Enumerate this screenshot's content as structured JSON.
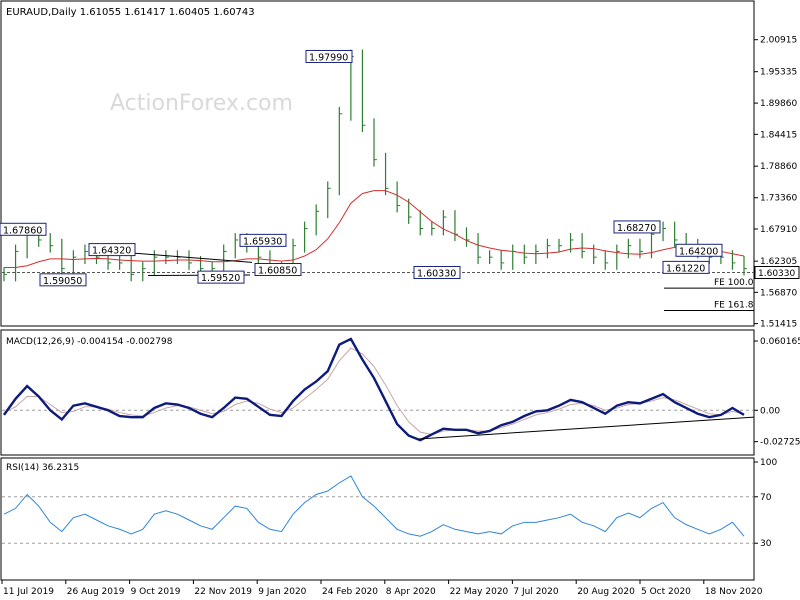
{
  "header": {
    "title": "EURAUD,Daily  1.61055 1.61417 1.60405 1.60743"
  },
  "watermark": "ActionForex.com",
  "colors": {
    "price": "#2e7d32",
    "sma": "#d32f2f",
    "macd_line": "#0d1b7a",
    "macd_signal": "#c8a6a6",
    "rsi": "#2f86d6",
    "label_border": "#1a237e",
    "trendline": "#000000",
    "grid": "#9e9e9e"
  },
  "chart_data": [
    {
      "type": "line",
      "name": "price-panel",
      "ylim": [
        1.51,
        2.04
      ],
      "yticks": [
        "2.00915",
        "1.95335",
        "1.89860",
        "1.84415",
        "1.78860",
        "1.73360",
        "1.67910",
        "1.62305",
        "1.56870",
        "1.51415"
      ],
      "current_price": "1.60330",
      "xticks": [
        "11 Jul 2019",
        "26 Aug 2019",
        "9 Oct 2019",
        "22 Nov 2019",
        "9 Jan 2020",
        "24 Feb 2020",
        "8 Apr 2020",
        "22 May 2020",
        "7 Jul 2020",
        "20 Aug 2020",
        "5 Oct 2020",
        "18 Nov 2020"
      ],
      "close": [
        1.6,
        1.64,
        1.67,
        1.66,
        1.65,
        1.61,
        1.63,
        1.64,
        1.63,
        1.62,
        1.62,
        1.6,
        1.61,
        1.63,
        1.63,
        1.63,
        1.62,
        1.61,
        1.61,
        1.64,
        1.66,
        1.65,
        1.63,
        1.61,
        1.61,
        1.65,
        1.68,
        1.71,
        1.75,
        1.88,
        1.98,
        1.86,
        1.8,
        1.75,
        1.72,
        1.7,
        1.68,
        1.68,
        1.7,
        1.67,
        1.66,
        1.63,
        1.63,
        1.62,
        1.64,
        1.63,
        1.64,
        1.65,
        1.65,
        1.66,
        1.64,
        1.63,
        1.62,
        1.64,
        1.65,
        1.64,
        1.67,
        1.68,
        1.66,
        1.65,
        1.64,
        1.63,
        1.63,
        1.62,
        1.61
      ],
      "sma": [
        1.612,
        1.612,
        1.615,
        1.622,
        1.627,
        1.627,
        1.626,
        1.627,
        1.628,
        1.627,
        1.625,
        1.624,
        1.623,
        1.623,
        1.624,
        1.625,
        1.625,
        1.624,
        1.622,
        1.622,
        1.624,
        1.627,
        1.627,
        1.625,
        1.623,
        1.625,
        1.632,
        1.643,
        1.662,
        1.69,
        1.724,
        1.741,
        1.746,
        1.746,
        1.738,
        1.726,
        1.709,
        1.692,
        1.679,
        1.67,
        1.659,
        1.651,
        1.646,
        1.642,
        1.64,
        1.637,
        1.636,
        1.637,
        1.639,
        1.644,
        1.646,
        1.645,
        1.641,
        1.638,
        1.636,
        1.635,
        1.638,
        1.643,
        1.647,
        1.648,
        1.648,
        1.646,
        1.64,
        1.636,
        1.632
      ],
      "labels": [
        "1.67860",
        "1.59050",
        "1.64320",
        "1.59520",
        "1.65930",
        "1.60850",
        "1.97990",
        "1.60330",
        "1.68270",
        "1.64200",
        "1.61220"
      ],
      "fe_labels": [
        "FE 100.0",
        "FE 161.8"
      ],
      "fe_values": [
        1.576,
        1.537
      ],
      "label_values": {
        "1.67860": 1.6786,
        "1.59050": 1.5905,
        "1.64320": 1.6432,
        "1.59520": 1.5952,
        "1.65930": 1.6593,
        "1.60850": 1.6085,
        "1.97990": 1.9799,
        "1.60330": 1.6033,
        "1.68270": 1.6827,
        "1.64200": 1.642,
        "1.61220": 1.6122
      }
    },
    {
      "type": "line",
      "name": "macd-panel",
      "title": "MACD(12,26,9) -0.004154 -0.002798",
      "ylim": [
        -0.038,
        0.068
      ],
      "yticks": [
        "0.060165",
        "0.00",
        "-0.02725"
      ],
      "dashed_levels": [
        0.0
      ],
      "macd": [
        -0.004,
        0.01,
        0.021,
        0.012,
        0.0,
        -0.008,
        0.004,
        0.006,
        0.003,
        0.0,
        -0.005,
        -0.006,
        -0.006,
        0.002,
        0.006,
        0.005,
        0.002,
        -0.003,
        -0.006,
        0.002,
        0.011,
        0.01,
        0.003,
        -0.004,
        -0.005,
        0.008,
        0.018,
        0.025,
        0.034,
        0.057,
        0.062,
        0.044,
        0.028,
        0.008,
        -0.012,
        -0.022,
        -0.026,
        -0.021,
        -0.016,
        -0.017,
        -0.017,
        -0.02,
        -0.018,
        -0.013,
        -0.01,
        -0.005,
        -0.001,
        0.0,
        0.004,
        0.009,
        0.007,
        0.002,
        -0.003,
        0.004,
        0.007,
        0.006,
        0.01,
        0.014,
        0.007,
        0.002,
        -0.003,
        -0.006,
        -0.004,
        0.002,
        -0.004
      ],
      "signal": [
        -0.002,
        0.003,
        0.012,
        0.012,
        0.005,
        -0.002,
        -0.001,
        0.003,
        0.003,
        0.001,
        -0.002,
        -0.004,
        -0.005,
        -0.002,
        0.002,
        0.004,
        0.003,
        0.0,
        -0.003,
        -0.001,
        0.005,
        0.008,
        0.006,
        0.001,
        -0.002,
        0.002,
        0.01,
        0.018,
        0.027,
        0.043,
        0.054,
        0.049,
        0.038,
        0.022,
        0.004,
        -0.01,
        -0.019,
        -0.021,
        -0.018,
        -0.017,
        -0.017,
        -0.018,
        -0.018,
        -0.015,
        -0.012,
        -0.008,
        -0.004,
        -0.002,
        0.001,
        0.005,
        0.006,
        0.004,
        0.0,
        0.002,
        0.005,
        0.006,
        0.008,
        0.011,
        0.009,
        0.005,
        0.001,
        -0.003,
        -0.004,
        -0.001,
        -0.003
      ]
    },
    {
      "type": "line",
      "name": "rsi-panel",
      "title": "RSI(14) 36.2315",
      "ylim": [
        0,
        100
      ],
      "yticks": [
        "100",
        "70",
        "30"
      ],
      "dashed_levels": [
        70,
        30
      ],
      "rsi": [
        55,
        60,
        72,
        62,
        48,
        40,
        52,
        55,
        50,
        45,
        42,
        38,
        42,
        55,
        58,
        55,
        50,
        45,
        42,
        52,
        62,
        60,
        48,
        42,
        40,
        55,
        65,
        72,
        75,
        82,
        88,
        70,
        62,
        52,
        42,
        38,
        36,
        40,
        46,
        42,
        40,
        38,
        40,
        38,
        45,
        48,
        48,
        50,
        52,
        55,
        48,
        45,
        40,
        52,
        56,
        52,
        60,
        65,
        52,
        46,
        42,
        38,
        42,
        48,
        36
      ]
    }
  ]
}
